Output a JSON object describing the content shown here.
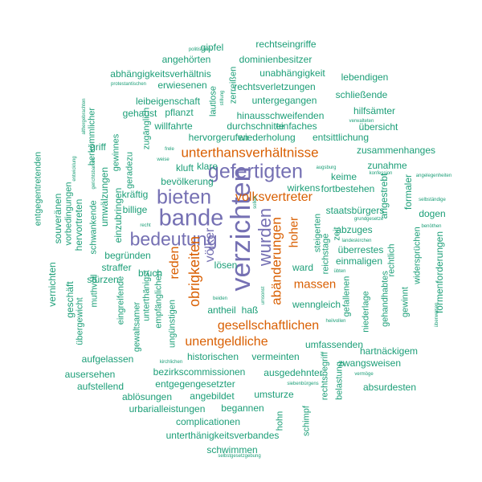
{
  "word_cloud": {
    "colors": {
      "green": "#1b9e77",
      "orange": "#d95f02",
      "purple": "#7570b3"
    },
    "words": [
      {
        "text": "verzichten",
        "color": "purple"
      },
      {
        "text": "bande",
        "color": "purple"
      },
      {
        "text": "gefertigten",
        "color": "purple"
      },
      {
        "text": "bieten",
        "color": "purple"
      },
      {
        "text": "bedeutung",
        "color": "purple"
      },
      {
        "text": "wurden",
        "color": "purple"
      },
      {
        "text": "völker",
        "color": "purple"
      },
      {
        "text": "unterthansverhältnisse",
        "color": "orange"
      },
      {
        "text": "volksvertreter",
        "color": "orange"
      },
      {
        "text": "massen",
        "color": "orange"
      },
      {
        "text": "abänderungen",
        "color": "orange"
      },
      {
        "text": "obrigkeiten",
        "color": "orange"
      },
      {
        "text": "reden",
        "color": "orange"
      },
      {
        "text": "gesellschaftlichen",
        "color": "orange"
      },
      {
        "text": "unentgeldliche",
        "color": "orange"
      },
      {
        "text": "hoher",
        "color": "orange"
      },
      {
        "text": "rechtseingriffe",
        "color": "green"
      },
      {
        "text": "gipfel",
        "color": "green"
      },
      {
        "text": "politischen",
        "color": "green"
      },
      {
        "text": "angehörten",
        "color": "green"
      },
      {
        "text": "dominienbesitzer",
        "color": "green"
      },
      {
        "text": "abhängigkeitsverhältnis",
        "color": "green"
      },
      {
        "text": "zerreißen",
        "color": "green"
      },
      {
        "text": "unabhängigkeit",
        "color": "green"
      },
      {
        "text": "protestantischen",
        "color": "green"
      },
      {
        "text": "erwiesenen",
        "color": "green"
      },
      {
        "text": "rechtsverletzungen",
        "color": "green"
      },
      {
        "text": "lebendigen",
        "color": "green"
      },
      {
        "text": "leibeigenschaft",
        "color": "green"
      },
      {
        "text": "lautlose",
        "color": "green"
      },
      {
        "text": "untergegangen",
        "color": "green"
      },
      {
        "text": "stillung",
        "color": "green"
      },
      {
        "text": "schließende",
        "color": "green"
      },
      {
        "text": "gehaust",
        "color": "green"
      },
      {
        "text": "pflanzt",
        "color": "green"
      },
      {
        "text": "hinausschweifenden",
        "color": "green"
      },
      {
        "text": "hilfsämter",
        "color": "green"
      },
      {
        "text": "willfahrte",
        "color": "green"
      },
      {
        "text": "durchschnitte",
        "color": "green"
      },
      {
        "text": "einfaches",
        "color": "green"
      },
      {
        "text": "verwalteten",
        "color": "green"
      },
      {
        "text": "übersicht",
        "color": "green"
      },
      {
        "text": "althergebrachten",
        "color": "green"
      },
      {
        "text": "herkömmlicher",
        "color": "green"
      },
      {
        "text": "zugänglich",
        "color": "green"
      },
      {
        "text": "hervorgerufen",
        "color": "green"
      },
      {
        "text": "wiederholung",
        "color": "green"
      },
      {
        "text": "entsittlichung",
        "color": "green"
      },
      {
        "text": "griff",
        "color": "green"
      },
      {
        "text": "gewinnes",
        "color": "green"
      },
      {
        "text": "frele",
        "color": "green"
      },
      {
        "text": "zusammenhanges",
        "color": "green"
      },
      {
        "text": "entgegentretenden",
        "color": "green"
      },
      {
        "text": "weise",
        "color": "green"
      },
      {
        "text": "kluft",
        "color": "green"
      },
      {
        "text": "klare",
        "color": "green"
      },
      {
        "text": "augsburg",
        "color": "green"
      },
      {
        "text": "zunahme",
        "color": "green"
      },
      {
        "text": "konfession",
        "color": "green"
      },
      {
        "text": "angelegenheiten",
        "color": "green"
      },
      {
        "text": "entwicklung",
        "color": "green"
      },
      {
        "text": "gerichtsbarkeit",
        "color": "green"
      },
      {
        "text": "geradezu",
        "color": "green"
      },
      {
        "text": "bevölkerung",
        "color": "green"
      },
      {
        "text": "keime",
        "color": "green"
      },
      {
        "text": "souveränen",
        "color": "green"
      },
      {
        "text": "vorbedingungen",
        "color": "green"
      },
      {
        "text": "umwälzungen",
        "color": "green"
      },
      {
        "text": "kräftig",
        "color": "green"
      },
      {
        "text": "fortbestehen",
        "color": "green"
      },
      {
        "text": "wirkens",
        "color": "green"
      },
      {
        "text": "angestrebt",
        "color": "green"
      },
      {
        "text": "formaler",
        "color": "green"
      },
      {
        "text": "selbständige",
        "color": "green"
      },
      {
        "text": "hervortreten",
        "color": "green"
      },
      {
        "text": "schwankende",
        "color": "green"
      },
      {
        "text": "einzubringen",
        "color": "green"
      },
      {
        "text": "billige",
        "color": "green"
      },
      {
        "text": "recht",
        "color": "green"
      },
      {
        "text": "sollen",
        "color": "green"
      },
      {
        "text": "staatsbürgers",
        "color": "green"
      },
      {
        "text": "dogen",
        "color": "green"
      },
      {
        "text": "grundgesetze",
        "color": "green"
      },
      {
        "text": "abzuges",
        "color": "green"
      },
      {
        "text": "benöthen",
        "color": "green"
      },
      {
        "text": "steigerten",
        "color": "green"
      },
      {
        "text": "zeit",
        "color": "green"
      },
      {
        "text": "landeskirchen",
        "color": "green"
      },
      {
        "text": "überrestes",
        "color": "green"
      },
      {
        "text": "begründen",
        "color": "green"
      },
      {
        "text": "einmaligen",
        "color": "green"
      },
      {
        "text": "reichstage",
        "color": "green"
      },
      {
        "text": "rechtlich",
        "color": "green"
      },
      {
        "text": "widersprüchen",
        "color": "green"
      },
      {
        "text": "formenforderungen",
        "color": "green"
      },
      {
        "text": "vernichten",
        "color": "green"
      },
      {
        "text": "straffer",
        "color": "green"
      },
      {
        "text": "lösen",
        "color": "green"
      },
      {
        "text": "ward",
        "color": "green"
      },
      {
        "text": "übten",
        "color": "green"
      },
      {
        "text": "stürzen",
        "color": "green"
      },
      {
        "text": "bruch",
        "color": "green"
      },
      {
        "text": "umsonst",
        "color": "green"
      },
      {
        "text": "unterthänigst",
        "color": "green"
      },
      {
        "text": "muthvoll",
        "color": "green"
      },
      {
        "text": "geschäft",
        "color": "green"
      },
      {
        "text": "eingreifende",
        "color": "green"
      },
      {
        "text": "empfänglichen",
        "color": "green"
      },
      {
        "text": "beiden",
        "color": "green"
      },
      {
        "text": "wenngleich",
        "color": "green"
      },
      {
        "text": "gefallenen",
        "color": "green"
      },
      {
        "text": "überweisen",
        "color": "green"
      },
      {
        "text": "übergewicht",
        "color": "green"
      },
      {
        "text": "gewaltsamer",
        "color": "green"
      },
      {
        "text": "antheil",
        "color": "green"
      },
      {
        "text": "haß",
        "color": "green"
      },
      {
        "text": "niederlage",
        "color": "green"
      },
      {
        "text": "gewinnt",
        "color": "green"
      },
      {
        "text": "gehandhabtes",
        "color": "green"
      },
      {
        "text": "ungünstigen",
        "color": "green"
      },
      {
        "text": "umfassenden",
        "color": "green"
      },
      {
        "text": "heilvollen",
        "color": "green"
      },
      {
        "text": "aufgelassen",
        "color": "green"
      },
      {
        "text": "historischen",
        "color": "green"
      },
      {
        "text": "vermeinten",
        "color": "green"
      },
      {
        "text": "hartnäckigem",
        "color": "green"
      },
      {
        "text": "kirchlichen",
        "color": "green"
      },
      {
        "text": "rechtsbegriff",
        "color": "green"
      },
      {
        "text": "zwangsweisen",
        "color": "green"
      },
      {
        "text": "ausersehen",
        "color": "green"
      },
      {
        "text": "bezirkscommissionen",
        "color": "green"
      },
      {
        "text": "ausgedehnter",
        "color": "green"
      },
      {
        "text": "vermöge",
        "color": "green"
      },
      {
        "text": "aufstellend",
        "color": "green"
      },
      {
        "text": "entgegengesetzter",
        "color": "green"
      },
      {
        "text": "siebenbürgens",
        "color": "green"
      },
      {
        "text": "belastung",
        "color": "green"
      },
      {
        "text": "absurdesten",
        "color": "green"
      },
      {
        "text": "ablösungen",
        "color": "green"
      },
      {
        "text": "angebildet",
        "color": "green"
      },
      {
        "text": "umsturze",
        "color": "green"
      },
      {
        "text": "urbarialleistungen",
        "color": "green"
      },
      {
        "text": "begannen",
        "color": "green"
      },
      {
        "text": "hohn",
        "color": "green"
      },
      {
        "text": "schimpf",
        "color": "green"
      },
      {
        "text": "complicationen",
        "color": "green"
      },
      {
        "text": "unterthänigkeitsverbandes",
        "color": "green"
      },
      {
        "text": "schwimmen",
        "color": "green"
      },
      {
        "text": "selbstgesetzgebung",
        "color": "green"
      }
    ]
  }
}
